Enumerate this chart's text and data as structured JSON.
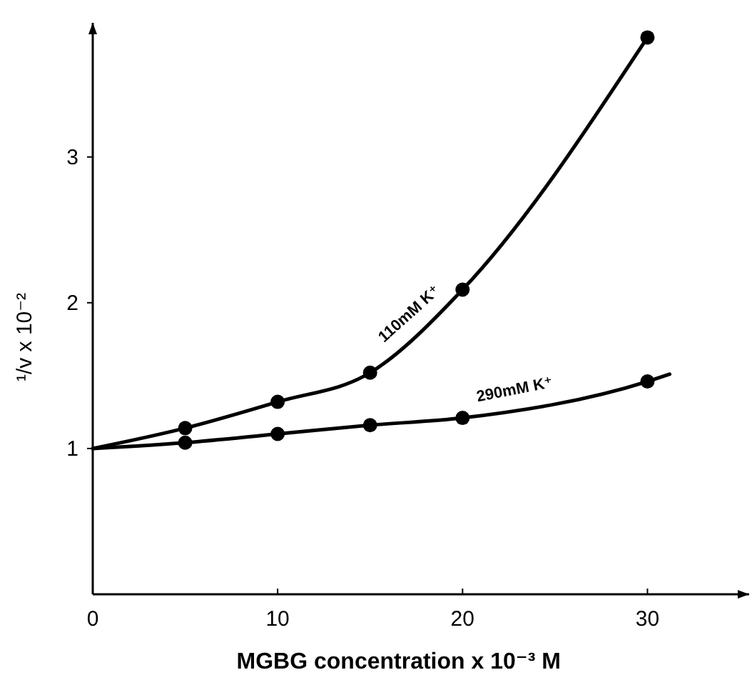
{
  "chart_data": {
    "type": "line",
    "xlabel": "MGBG  concentration x 10⁻³ M",
    "ylabel": "¹/v x 10⁻²",
    "xlim": [
      0,
      35.5
    ],
    "ylim": [
      0,
      3.92
    ],
    "xticks": [
      0,
      10,
      20,
      30
    ],
    "yticks": [
      1,
      2,
      3
    ],
    "grid": false,
    "series": [
      {
        "name": "110mM K⁺",
        "color": "#000000",
        "marker": "none",
        "x": [
          0,
          5,
          10,
          15,
          20,
          30
        ],
        "values": [
          1.0,
          1.14,
          1.32,
          1.52,
          2.09,
          3.82
        ]
      },
      {
        "name": "290mM K⁺",
        "color": "#000000",
        "marker": "none",
        "x": [
          0,
          5,
          10,
          15,
          20,
          30,
          31.2
        ],
        "values": [
          1.0,
          1.04,
          1.1,
          1.16,
          1.21,
          1.46,
          1.51
        ]
      },
      {
        "color": "#000000",
        "type": "scatter",
        "marker": "circle",
        "x": [
          5,
          10,
          15,
          20,
          30
        ],
        "values": [
          1.14,
          1.32,
          1.52,
          2.09,
          3.82
        ]
      },
      {
        "color": "#000000",
        "type": "scatter",
        "marker": "circle",
        "x": [
          5,
          10,
          15,
          20,
          30
        ],
        "values": [
          1.04,
          1.1,
          1.16,
          1.21,
          1.46
        ]
      }
    ]
  }
}
